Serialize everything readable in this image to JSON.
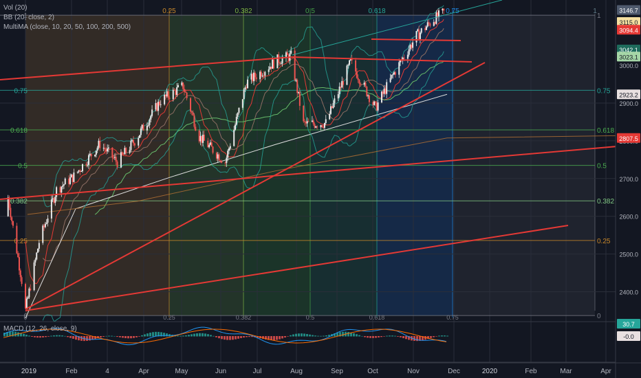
{
  "legend": {
    "vol": "Vol (20)",
    "bb": "BB (20, close, 2)",
    "multima": "MultiMA (close, 10, 20, 50, 100, 200, 500)",
    "macd": "MACD (12, 26, close, 9)"
  },
  "price_axis": {
    "ticks": [
      "2900.0",
      "2800.0",
      "2700.0",
      "2600.0",
      "2500.0",
      "2400.0"
    ],
    "tick_values": [
      2900,
      2800,
      2700,
      2600,
      2500,
      2400
    ],
    "badges": [
      {
        "label": "3146.7",
        "value": 3146.7,
        "color": "#4f5a6e"
      },
      {
        "label": "3115.0",
        "value": 3115.0,
        "color": "#f5dfa0",
        "text_color": "#131722"
      },
      {
        "label": "3094.4",
        "value": 3094.4,
        "color": "#e53935"
      },
      {
        "label": "3042.1",
        "value": 3042.1,
        "color": "#1e6b5c"
      },
      {
        "label": "3023.1",
        "value": 3023.1,
        "color": "#a5d6a7",
        "text_color": "#131722"
      },
      {
        "label": "2923.2",
        "value": 2923.2,
        "color": "#e8e0e0",
        "text_color": "#131722"
      },
      {
        "label": "2807.5",
        "value": 2807.5,
        "color": "#e53935"
      }
    ],
    "partial_label": "3000.0"
  },
  "macd_axis": {
    "badges": [
      {
        "label": "30.7",
        "color": "#26a69a"
      },
      {
        "label": "-0.0",
        "color": "#e8e0e0",
        "text_color": "#131722"
      }
    ]
  },
  "time_axis": [
    "2019",
    "Feb",
    "4",
    "Apr",
    "May",
    "Jun",
    "Jul",
    "Aug",
    "Sep",
    "Oct",
    "Nov",
    "Dec",
    "2020",
    "Feb",
    "Mar",
    "Apr"
  ],
  "fib_top_labels": [
    "0.25",
    "0.382",
    "0.5",
    "0.618",
    "0.75",
    "1"
  ],
  "fib_bottom_labels": [
    "0",
    "0.25",
    "0.382",
    "0.5",
    "0.618",
    "0.75"
  ],
  "fib_left_labels": [
    "1",
    "0.75",
    "0.618",
    "0.5",
    "0.382",
    "0.25",
    "0"
  ],
  "fib_right_labels": [
    "1",
    "0.75",
    "0.618",
    "0.5",
    "0.382",
    "0.25",
    "0"
  ],
  "chart_data": {
    "type": "candlestick",
    "instrument_note": "",
    "y_range": [
      2330,
      3160
    ],
    "fib_levels": [
      {
        "ratio": 1,
        "price": 3133
      },
      {
        "ratio": 0.75,
        "price": 2934
      },
      {
        "ratio": 0.618,
        "price": 2829
      },
      {
        "ratio": 0.5,
        "price": 2735
      },
      {
        "ratio": 0.382,
        "price": 2641
      },
      {
        "ratio": 0.25,
        "price": 2536
      },
      {
        "ratio": 0,
        "price": 2337
      }
    ],
    "close_series": [
      {
        "date": "2018-12-24",
        "close": 2351
      },
      {
        "date": "2019-01-04",
        "close": 2532
      },
      {
        "date": "2019-01-18",
        "close": 2670
      },
      {
        "date": "2019-02-01",
        "close": 2706
      },
      {
        "date": "2019-02-22",
        "close": 2792
      },
      {
        "date": "2019-03-08",
        "close": 2743
      },
      {
        "date": "2019-03-22",
        "close": 2800
      },
      {
        "date": "2019-04-12",
        "close": 2907
      },
      {
        "date": "2019-04-30",
        "close": 2945
      },
      {
        "date": "2019-05-13",
        "close": 2811
      },
      {
        "date": "2019-06-03",
        "close": 2744
      },
      {
        "date": "2019-06-20",
        "close": 2954
      },
      {
        "date": "2019-07-15",
        "close": 3014
      },
      {
        "date": "2019-07-26",
        "close": 3025
      },
      {
        "date": "2019-08-05",
        "close": 2844
      },
      {
        "date": "2019-08-23",
        "close": 2847
      },
      {
        "date": "2019-09-12",
        "close": 3009
      },
      {
        "date": "2019-10-02",
        "close": 2887
      },
      {
        "date": "2019-10-18",
        "close": 2986
      },
      {
        "date": "2019-11-04",
        "close": 3078
      },
      {
        "date": "2019-11-18",
        "close": 3122
      },
      {
        "date": "2019-11-26",
        "close": 3140
      }
    ],
    "ma_levels": {
      "ma_200": 2923.2,
      "ma_500": 2807.5,
      "ma_50": 3023.1,
      "ma_20": 3094.4,
      "ma_10": 3115.0
    },
    "bb_upper": 3146.7,
    "macd": {
      "macd": 30.7,
      "signal": -0.0
    }
  }
}
